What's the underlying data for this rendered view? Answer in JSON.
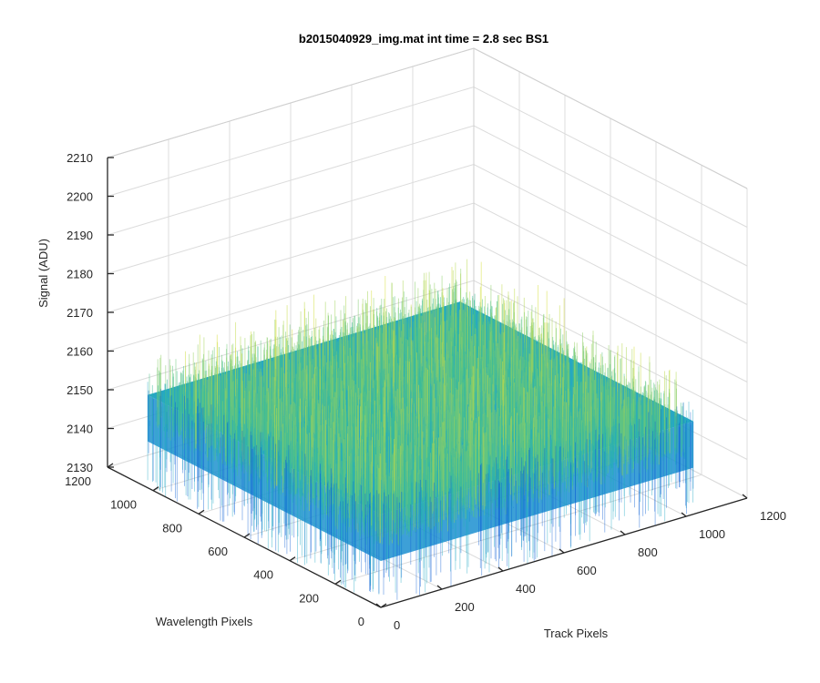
{
  "chart_data": {
    "type": "surface",
    "title": "b2015040929_img.mat int time = 2.8 sec   BS1",
    "xlabel": "Track Pixels",
    "ylabel": "Wavelength Pixels",
    "zlabel": "Signal (ADU)",
    "xlim": [
      0,
      1200
    ],
    "ylim": [
      0,
      1200
    ],
    "zlim": [
      2130,
      2210
    ],
    "x_ticks": [
      "0",
      "200",
      "400",
      "600",
      "800",
      "1000",
      "1200"
    ],
    "y_ticks": [
      "0",
      "200",
      "400",
      "600",
      "800",
      "1000",
      "1200"
    ],
    "z_ticks": [
      "2130",
      "2140",
      "2150",
      "2160",
      "2170",
      "2180",
      "2190",
      "2200",
      "2210"
    ],
    "surface_extent": {
      "x": [
        0,
        1024
      ],
      "y": [
        0,
        1024
      ]
    },
    "signal_mean": 2150,
    "signal_range": [
      2138,
      2168
    ],
    "grid": true,
    "colormap": "parula",
    "colors": {
      "low": "#0b5fd6",
      "mid": "#1fa8c4",
      "high": "#d6df3c"
    }
  }
}
